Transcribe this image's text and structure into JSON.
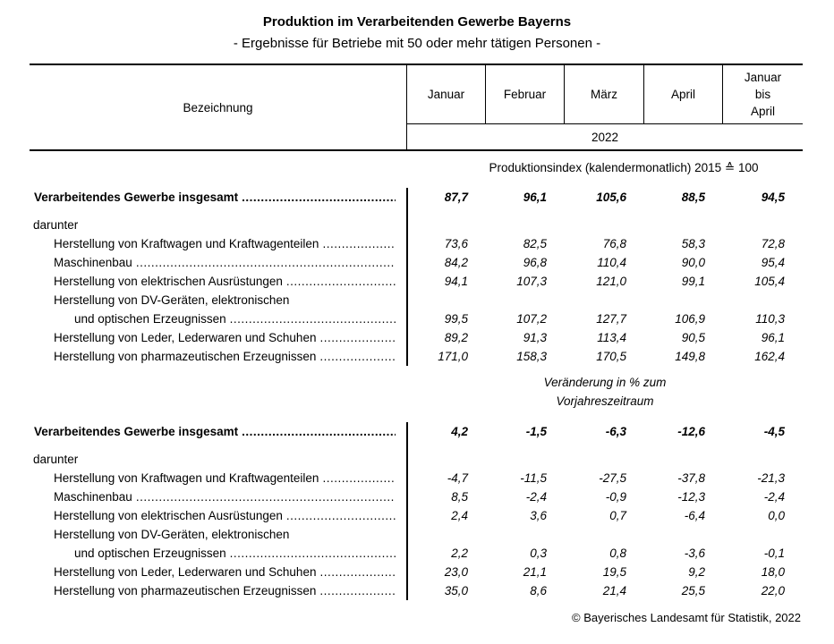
{
  "title": "Produktion im Verarbeitenden Gewerbe Bayerns",
  "subtitle": "- Ergebnisse für Betriebe mit 50 oder mehr tätigen Personen -",
  "header": {
    "bezeichnung": "Bezeichnung",
    "columns": [
      "Januar",
      "Februar",
      "März",
      "April",
      "Januar\nbis\nApril"
    ],
    "year": "2022"
  },
  "sections": [
    {
      "heading": "Produktionsindex (kalendermonatlich) 2015 ≙ 100",
      "total": {
        "label": "Verarbeitendes Gewerbe insgesamt",
        "values": [
          "87,7",
          "96,1",
          "105,6",
          "88,5",
          "94,5"
        ]
      },
      "darunter": "darunter",
      "rows": [
        {
          "label": "Herstellung von Kraftwagen und Kraftwagenteilen",
          "values": [
            "73,6",
            "82,5",
            "76,8",
            "58,3",
            "72,8"
          ]
        },
        {
          "label": "Maschinenbau",
          "values": [
            "84,2",
            "96,8",
            "110,4",
            "90,0",
            "95,4"
          ]
        },
        {
          "label": "Herstellung von elektrischen Ausrüstungen",
          "values": [
            "94,1",
            "107,3",
            "121,0",
            "99,1",
            "105,4"
          ]
        },
        {
          "label": "Herstellung von DV-Geräten, elektronischen",
          "label2": "und optischen Erzeugnissen",
          "values": [
            "99,5",
            "107,2",
            "127,7",
            "106,9",
            "110,3"
          ]
        },
        {
          "label": "Herstellung von Leder, Lederwaren und Schuhen",
          "values": [
            "89,2",
            "91,3",
            "113,4",
            "90,5",
            "96,1"
          ]
        },
        {
          "label": "Herstellung von pharmazeutischen Erzeugnissen",
          "values": [
            "171,0",
            "158,3",
            "170,5",
            "149,8",
            "162,4"
          ]
        }
      ]
    },
    {
      "heading": "Veränderung in % zum",
      "heading2": "Vorjahreszeitraum",
      "total": {
        "label": "Verarbeitendes Gewerbe insgesamt",
        "values": [
          "4,2",
          "-1,5",
          "-6,3",
          "-12,6",
          "-4,5"
        ]
      },
      "darunter": "darunter",
      "rows": [
        {
          "label": "Herstellung von Kraftwagen und Kraftwagenteilen",
          "values": [
            "-4,7",
            "-11,5",
            "-27,5",
            "-37,8",
            "-21,3"
          ]
        },
        {
          "label": "Maschinenbau",
          "values": [
            "8,5",
            "-2,4",
            "-0,9",
            "-12,3",
            "-2,4"
          ]
        },
        {
          "label": "Herstellung von elektrischen Ausrüstungen",
          "values": [
            "2,4",
            "3,6",
            "0,7",
            "-6,4",
            "0,0"
          ]
        },
        {
          "label": "Herstellung von DV-Geräten, elektronischen",
          "label2": "und optischen Erzeugnissen",
          "values": [
            "2,2",
            "0,3",
            "0,8",
            "-3,6",
            "-0,1"
          ]
        },
        {
          "label": "Herstellung von Leder, Lederwaren und Schuhen",
          "values": [
            "23,0",
            "21,1",
            "19,5",
            "9,2",
            "18,0"
          ]
        },
        {
          "label": "Herstellung von pharmazeutischen Erzeugnissen",
          "values": [
            "35,0",
            "8,6",
            "21,4",
            "25,5",
            "22,0"
          ]
        }
      ]
    }
  ],
  "footer": "© Bayerisches Landesamt für Statistik, 2022"
}
